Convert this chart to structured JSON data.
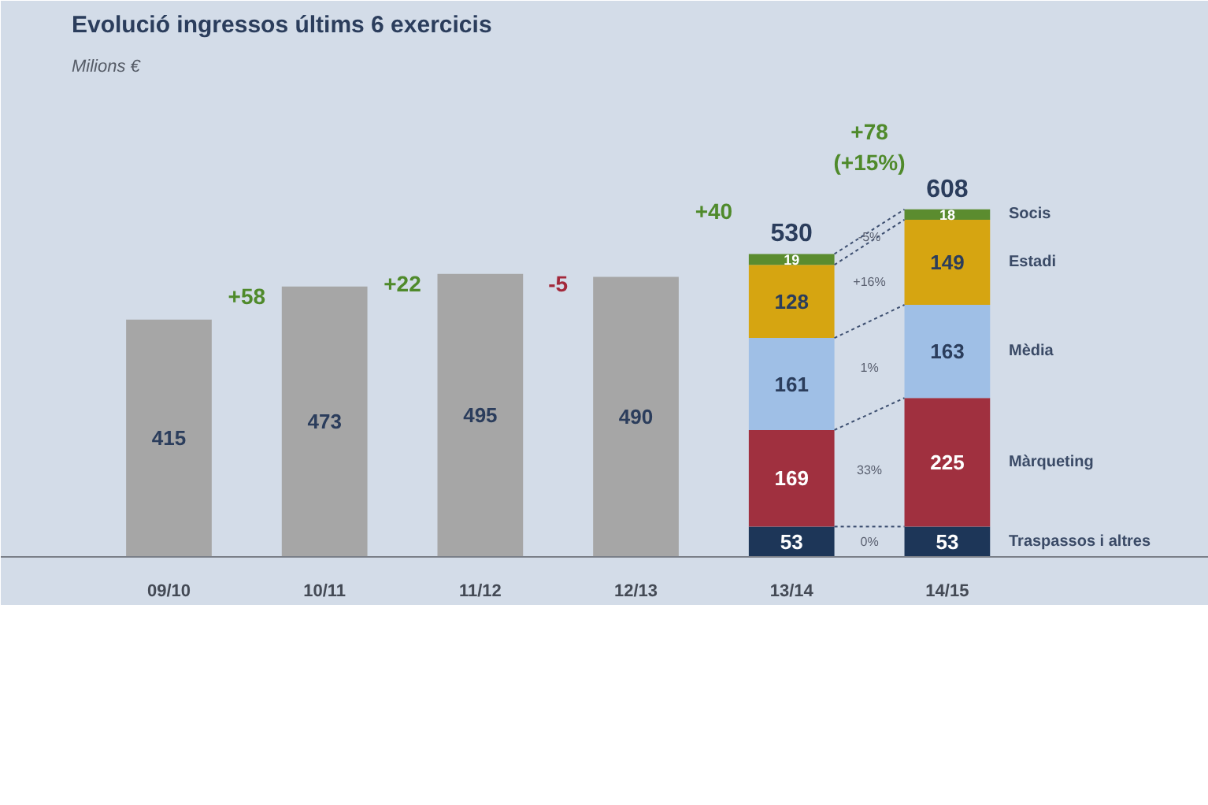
{
  "chart_data": {
    "type": "bar",
    "title": "Evolució ingressos últims 6 exercicis",
    "subtitle": "Milions €",
    "categories": [
      "09/10",
      "10/11",
      "11/12",
      "12/13",
      "13/14",
      "14/15"
    ],
    "stacked": true,
    "data_labels": true,
    "series": [
      {
        "color": "#a6a6a6",
        "values": [
          415,
          473,
          495,
          490,
          null,
          null
        ]
      },
      {
        "name": "Traspassos i altres",
        "color": "#1d3658",
        "values": [
          null,
          null,
          null,
          null,
          53,
          53
        ]
      },
      {
        "name": "Màrqueting",
        "color": "#a0303f",
        "values": [
          null,
          null,
          null,
          null,
          169,
          225
        ]
      },
      {
        "name": "Mèdia",
        "color": "#9fbfe6",
        "values": [
          null,
          null,
          null,
          null,
          161,
          163
        ]
      },
      {
        "name": "Estadi",
        "color": "#d6a511",
        "values": [
          null,
          null,
          null,
          null,
          128,
          149
        ]
      },
      {
        "name": "Socis",
        "color": "#5b8c2f",
        "values": [
          null,
          null,
          null,
          null,
          19,
          18
        ]
      }
    ],
    "totals": [
      null,
      null,
      null,
      null,
      "530",
      "608"
    ],
    "annotations": [
      "+58",
      "+22",
      "-5",
      "+40",
      "+78\n(+15%)",
      "0%",
      "33%",
      "1%",
      "+16%",
      "-5%"
    ]
  }
}
